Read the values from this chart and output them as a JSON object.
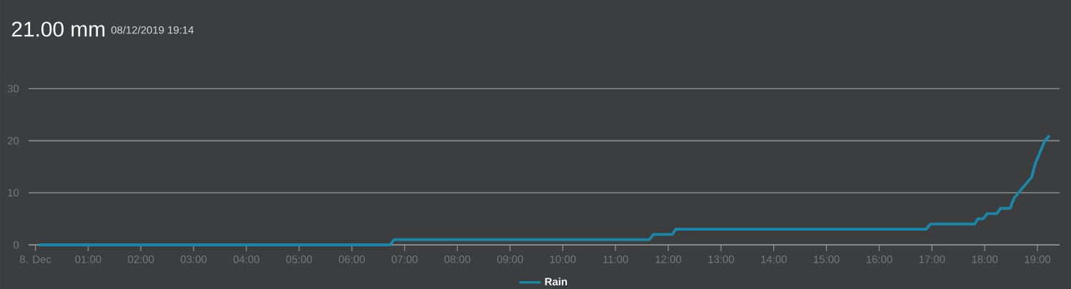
{
  "chart_data": {
    "type": "line",
    "title": "21.00 mm",
    "subtitle": "08/12/2019 19:14",
    "x": [
      0.05,
      6.73,
      6.8,
      11.64,
      11.72,
      12.08,
      12.14,
      16.89,
      16.97,
      17.81,
      17.87,
      17.97,
      18.05,
      18.23,
      18.3,
      18.48,
      18.56,
      18.89,
      18.96,
      19.14,
      19.23
    ],
    "series": [
      {
        "name": "Rain",
        "color": "#1a87a8",
        "values": [
          0,
          0,
          1,
          1,
          2,
          2,
          3,
          3,
          4,
          4,
          5,
          5,
          6,
          6,
          7,
          7,
          9,
          13,
          15.6,
          20,
          21
        ]
      }
    ],
    "xlim": [
      -0.13,
      19.42
    ],
    "ylim": [
      0,
      30
    ],
    "xticks": [
      {
        "value": 0,
        "label": "8. Dec"
      },
      {
        "value": 1,
        "label": "01:00"
      },
      {
        "value": 2,
        "label": "02:00"
      },
      {
        "value": 3,
        "label": "03:00"
      },
      {
        "value": 4,
        "label": "04:00"
      },
      {
        "value": 5,
        "label": "05:00"
      },
      {
        "value": 6,
        "label": "06:00"
      },
      {
        "value": 7,
        "label": "07:00"
      },
      {
        "value": 8,
        "label": "08:00"
      },
      {
        "value": 9,
        "label": "09:00"
      },
      {
        "value": 10,
        "label": "10:00"
      },
      {
        "value": 11,
        "label": "11:00"
      },
      {
        "value": 12,
        "label": "12:00"
      },
      {
        "value": 13,
        "label": "13:00"
      },
      {
        "value": 14,
        "label": "14:00"
      },
      {
        "value": 15,
        "label": "15:00"
      },
      {
        "value": 16,
        "label": "16:00"
      },
      {
        "value": 17,
        "label": "17:00"
      },
      {
        "value": 18,
        "label": "18:00"
      },
      {
        "value": 19,
        "label": "19:00"
      }
    ],
    "yticks": [
      0,
      10,
      20,
      30
    ],
    "grid": "y",
    "legend": "bottom",
    "marker": "none",
    "line_style": "solid"
  }
}
